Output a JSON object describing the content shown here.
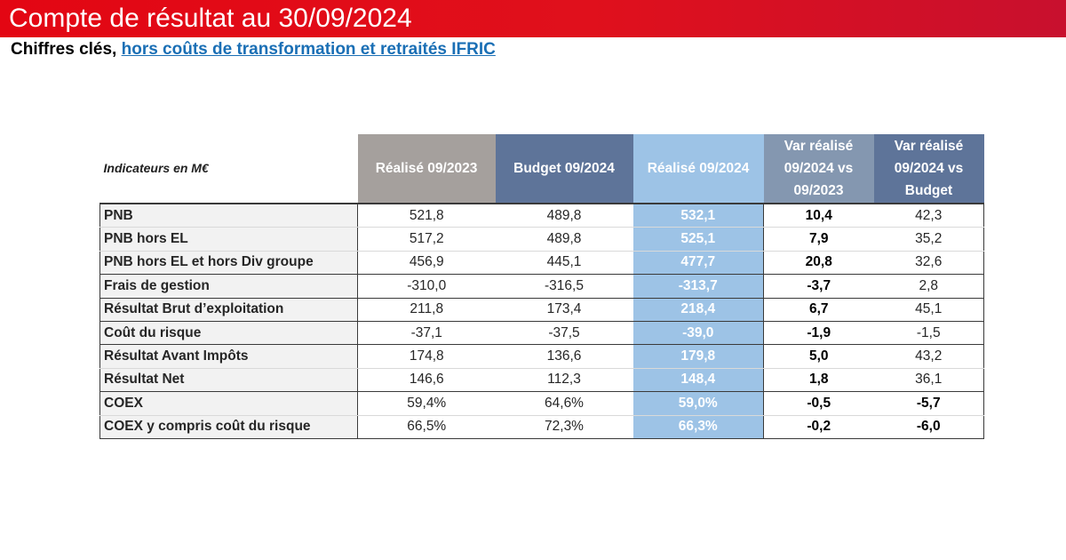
{
  "header": {
    "title": "Compte de résultat au 30/09/2024",
    "subtitle_prefix": "Chiffres clés, ",
    "subtitle_link": "hors coûts de transformation et retraités IFRIC"
  },
  "colors": {
    "banner": "#e30613",
    "col_realise_2023": "#a5a09d",
    "col_budget_2024": "#5e7499",
    "col_realise_2024": "#9dc3e6"
  },
  "table": {
    "headers": [
      "Indicateurs en M€",
      "Réalisé 09/2023",
      "Budget 09/2024",
      "Réalisé 09/2024",
      "Var réalisé 09/2024 vs 09/2023",
      "Var réalisé 09/2024 vs Budget"
    ],
    "rows": [
      {
        "label": "PNB",
        "r2023": "521,8",
        "b2024": "489,8",
        "r2024": "532,1",
        "var1": "10,4",
        "var2": "42,3"
      },
      {
        "label": "PNB hors EL",
        "r2023": "517,2",
        "b2024": "489,8",
        "r2024": "525,1",
        "var1": "7,9",
        "var2": "35,2"
      },
      {
        "label": "PNB hors EL et hors Div groupe",
        "r2023": "456,9",
        "b2024": "445,1",
        "r2024": "477,7",
        "var1": "20,8",
        "var2": "32,6"
      },
      {
        "label": "Frais de gestion",
        "r2023": "-310,0",
        "b2024": "-316,5",
        "r2024": "-313,7",
        "var1": "-3,7",
        "var2": "2,8"
      },
      {
        "label": "Résultat Brut d’exploitation",
        "r2023": "211,8",
        "b2024": "173,4",
        "r2024": "218,4",
        "var1": "6,7",
        "var2": "45,1"
      },
      {
        "label": "Coût du risque",
        "r2023": "-37,1",
        "b2024": "-37,5",
        "r2024": "-39,0",
        "var1": "-1,9",
        "var2": "-1,5"
      },
      {
        "label": "Résultat Avant Impôts",
        "r2023": "174,8",
        "b2024": "136,6",
        "r2024": "179,8",
        "var1": "5,0",
        "var2": "43,2"
      },
      {
        "label": "Résultat Net",
        "r2023": "146,6",
        "b2024": "112,3",
        "r2024": "148,4",
        "var1": "1,8",
        "var2": "36,1"
      },
      {
        "label": "COEX",
        "r2023": "59,4%",
        "b2024": "64,6%",
        "r2024": "59,0%",
        "var1": "-0,5",
        "var2": "-5,7"
      },
      {
        "label": "COEX y compris coût du risque",
        "r2023": "66,5%",
        "b2024": "72,3%",
        "r2024": "66,3%",
        "var1": "-0,2",
        "var2": "-6,0"
      }
    ]
  }
}
